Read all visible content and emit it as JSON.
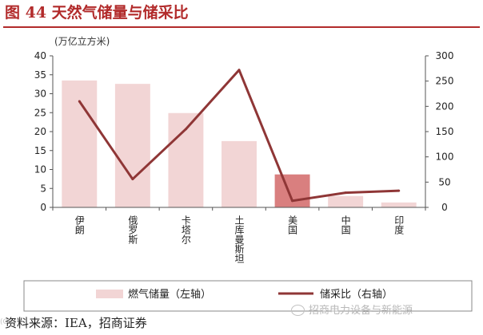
{
  "title": "图 44 天然气储量与储采比",
  "source": "资料来源：IEA，招商证券",
  "watermark": "招商电力设备与新能源",
  "watermark_left": "(OS)",
  "colors": {
    "bar": "#f2d5d5",
    "bar_highlight": "#d97f7f",
    "line": "#8f3636",
    "title": "#b22b2b",
    "axis": "#555555"
  },
  "chart_data": {
    "type": "bar",
    "unit_label": "(万亿立方米)",
    "categories": [
      "伊朗",
      "俄罗斯",
      "卡塔尔",
      "土库曼斯坦",
      "美国",
      "中国",
      "印度"
    ],
    "series": [
      {
        "name": "燃气储量（左轴）",
        "type": "bar",
        "axis": "left",
        "values": [
          33.5,
          32.6,
          24.9,
          17.5,
          8.7,
          3.0,
          1.3
        ],
        "highlight_index": 4
      },
      {
        "name": "储采比（右轴）",
        "type": "line",
        "axis": "right",
        "values": [
          210,
          56,
          155,
          272,
          13,
          29,
          33
        ]
      }
    ],
    "y_left": {
      "min": 0,
      "max": 40,
      "ticks": [
        0,
        5,
        10,
        15,
        20,
        25,
        30,
        35,
        40
      ]
    },
    "y_right": {
      "min": 0,
      "max": 300,
      "ticks": [
        0,
        50,
        100,
        150,
        200,
        250,
        300
      ]
    },
    "grid": false,
    "legend_position": "bottom"
  }
}
